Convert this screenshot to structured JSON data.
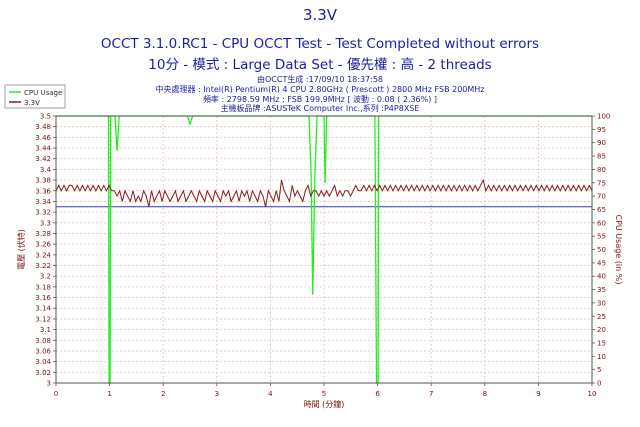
{
  "header": {
    "title": "3.3V",
    "subtitle1": "OCCT 3.1.0.RC1 - CPU OCCT Test - Test Completed without errors",
    "subtitle2": "10分 - 模式 : Large Data Set - 優先權 : 高 - 2 threads",
    "info1": "由OCCT生成 :17/09/10 18:37:58",
    "info2": "中央處理器 : Intel(R) Pentium(R) 4 CPU 2.80GHz ( Prescott ) 2800 MHz FSB 200MHz",
    "info3": "頻率 : 2798.59 MHz ; FSB 199.9MHz [ 波動 : 0.08 ( 2.36%) ]",
    "info4": "主機板品牌 :ASUSTeK Computer Inc.,系列 :P4P8XSE"
  },
  "colors": {
    "title": "#1c1ca8",
    "cpu_series": "#22ee22",
    "voltage_series": "#8b1a1a",
    "avg_line": "#3030d0",
    "axis_text": "#7a1010",
    "grid": "#e0c0c0"
  },
  "chart_data": {
    "type": "line",
    "title": "3.3V",
    "xlabel": "時間 (分鐘)",
    "ylabel_left": "電壓 (伏特)",
    "ylabel_right": "CPU Usage (in %)",
    "xlim": [
      0,
      10
    ],
    "ylim_left": [
      3.0,
      3.5
    ],
    "ylim_right": [
      0,
      100
    ],
    "x_ticks": [
      "0",
      "1",
      "2",
      "3",
      "4",
      "5",
      "6",
      "7",
      "8",
      "9",
      "10"
    ],
    "y_left_ticks": [
      "3",
      "3.02",
      "3.04",
      "3.06",
      "3.08",
      "3.1",
      "3.12",
      "3.14",
      "3.16",
      "3.18",
      "3.2",
      "3.22",
      "3.24",
      "3.26",
      "3.28",
      "3.3",
      "3.32",
      "3.34",
      "3.36",
      "3.38",
      "3.4",
      "3.42",
      "3.44",
      "3.46",
      "3.48",
      "3.5"
    ],
    "y_right_ticks": [
      "0",
      "5",
      "10",
      "15",
      "20",
      "25",
      "30",
      "35",
      "40",
      "45",
      "50",
      "55",
      "60",
      "65",
      "70",
      "75",
      "80",
      "85",
      "90",
      "95",
      "100"
    ],
    "grid": true,
    "legend_position": "top-left",
    "legend": [
      "CPU Usage",
      "3.3V"
    ],
    "reference_line": 3.33,
    "series": [
      {
        "name": "CPU Usage",
        "axis": "right",
        "points": [
          [
            0,
            100
          ],
          [
            0.98,
            100
          ],
          [
            0.99,
            0
          ],
          [
            1.01,
            0
          ],
          [
            1.02,
            100
          ],
          [
            1.1,
            100
          ],
          [
            1.14,
            87
          ],
          [
            1.18,
            100
          ],
          [
            2.45,
            100
          ],
          [
            2.5,
            97
          ],
          [
            2.55,
            100
          ],
          [
            4.72,
            100
          ],
          [
            4.76,
            78
          ],
          [
            4.79,
            33
          ],
          [
            4.83,
            78
          ],
          [
            4.87,
            100
          ],
          [
            5.0,
            100
          ],
          [
            5.02,
            75
          ],
          [
            5.05,
            100
          ],
          [
            5.95,
            100
          ],
          [
            5.98,
            0
          ],
          [
            6.01,
            0
          ],
          [
            6.02,
            100
          ],
          [
            10,
            100
          ]
        ]
      },
      {
        "name": "3.3V",
        "axis": "left",
        "x_start": 0,
        "x_end": 10,
        "values": [
          3.36,
          3.37,
          3.36,
          3.37,
          3.36,
          3.37,
          3.37,
          3.36,
          3.37,
          3.36,
          3.37,
          3.36,
          3.37,
          3.36,
          3.37,
          3.36,
          3.37,
          3.36,
          3.37,
          3.36,
          3.37,
          3.36,
          3.36,
          3.35,
          3.36,
          3.34,
          3.36,
          3.35,
          3.34,
          3.36,
          3.34,
          3.35,
          3.34,
          3.36,
          3.35,
          3.33,
          3.36,
          3.34,
          3.35,
          3.36,
          3.34,
          3.36,
          3.35,
          3.34,
          3.35,
          3.36,
          3.34,
          3.35,
          3.36,
          3.34,
          3.35,
          3.36,
          3.35,
          3.34,
          3.36,
          3.35,
          3.34,
          3.36,
          3.35,
          3.34,
          3.36,
          3.35,
          3.34,
          3.36,
          3.35,
          3.36,
          3.34,
          3.35,
          3.36,
          3.34,
          3.36,
          3.35,
          3.36,
          3.34,
          3.36,
          3.35,
          3.34,
          3.36,
          3.35,
          3.33,
          3.36,
          3.35,
          3.34,
          3.36,
          3.34,
          3.38,
          3.36,
          3.35,
          3.34,
          3.37,
          3.35,
          3.36,
          3.35,
          3.34,
          3.36,
          3.37,
          3.35,
          3.36,
          3.36,
          3.35,
          3.36,
          3.35,
          3.36,
          3.35,
          3.36,
          3.37,
          3.35,
          3.36,
          3.35,
          3.36,
          3.36,
          3.35,
          3.36,
          3.37,
          3.36,
          3.36,
          3.37,
          3.36,
          3.37,
          3.36,
          3.37,
          3.36,
          3.37,
          3.36,
          3.37,
          3.36,
          3.37,
          3.36,
          3.37,
          3.36,
          3.37,
          3.36,
          3.37,
          3.36,
          3.37,
          3.36,
          3.37,
          3.36,
          3.37,
          3.36,
          3.37,
          3.36,
          3.37,
          3.36,
          3.37,
          3.36,
          3.37,
          3.36,
          3.37,
          3.36,
          3.37,
          3.36,
          3.37,
          3.36,
          3.37,
          3.36,
          3.37,
          3.36,
          3.37,
          3.36,
          3.37,
          3.38,
          3.36,
          3.37,
          3.36,
          3.37,
          3.36,
          3.37,
          3.36,
          3.37,
          3.36,
          3.37,
          3.36,
          3.37,
          3.36,
          3.37,
          3.36,
          3.37,
          3.36,
          3.37,
          3.36,
          3.37,
          3.36,
          3.37,
          3.36,
          3.37,
          3.36,
          3.37,
          3.36,
          3.37,
          3.36,
          3.37,
          3.36,
          3.37,
          3.36,
          3.37,
          3.36,
          3.37,
          3.36,
          3.37,
          3.36,
          3.37,
          3.36
        ]
      }
    ]
  }
}
